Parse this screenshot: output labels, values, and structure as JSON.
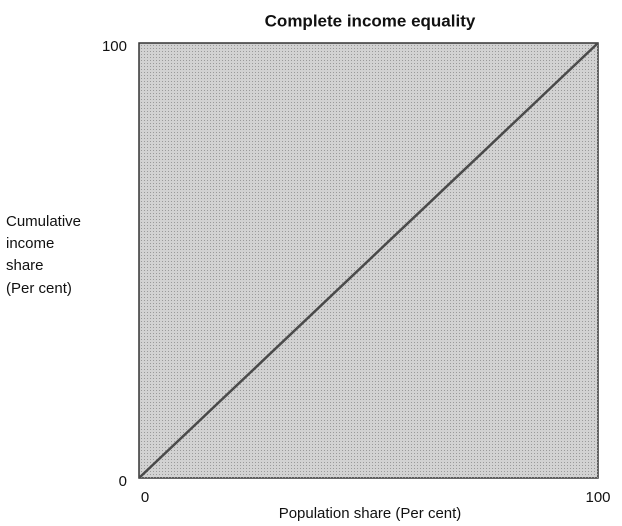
{
  "chart_data": {
    "type": "line",
    "title": "Complete income equality",
    "xlabel": "Population share (Per cent)",
    "ylabel": [
      "Cumulative",
      "income",
      "share",
      "(Per cent)"
    ],
    "x": [
      0,
      100
    ],
    "values": [
      0,
      100
    ],
    "color": "#4a4a4a",
    "xlim": [
      0,
      100
    ],
    "ylim": [
      0,
      100
    ],
    "xticks": [
      0,
      100
    ],
    "yticks": [
      0,
      100
    ],
    "plot_color": "#d2d2d2",
    "grid": false
  }
}
